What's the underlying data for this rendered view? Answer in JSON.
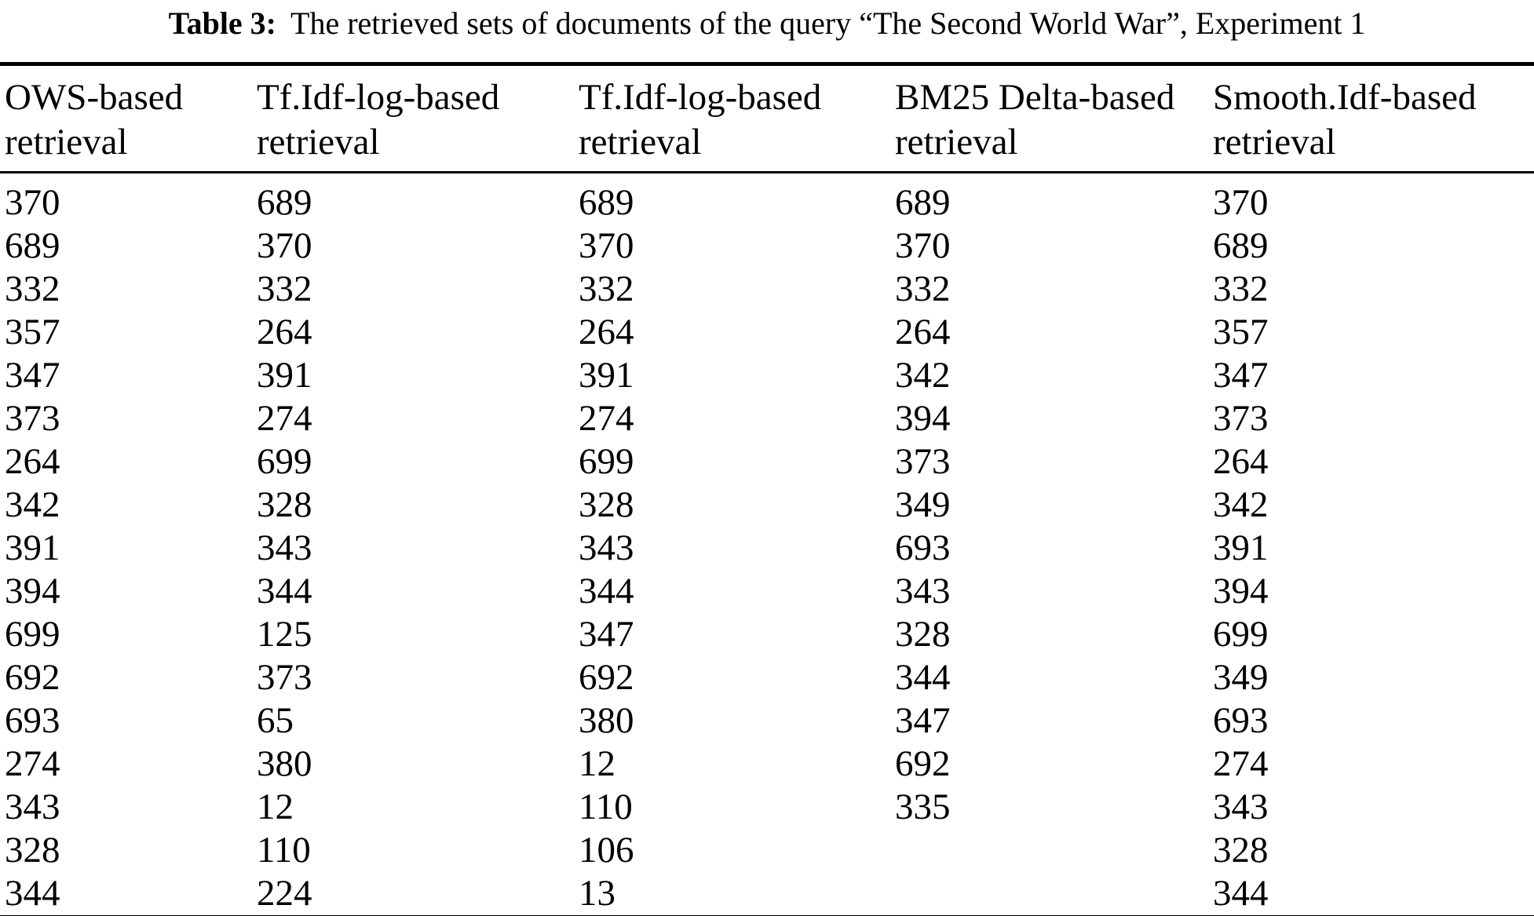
{
  "caption": {
    "label": "Table 3:",
    "text": "The retrieved sets of documents of the query “The Second World War”, Experiment 1"
  },
  "table": {
    "row_count": 17,
    "columns": [
      {
        "header_line1": "OWS-based",
        "header_line2": "retrieval",
        "values": [
          "370",
          "689",
          "332",
          "357",
          "347",
          "373",
          "264",
          "342",
          "391",
          "394",
          "699",
          "692",
          "693",
          "274",
          "343",
          "328",
          "344"
        ]
      },
      {
        "header_line1": "Tf.Idf-log-based",
        "header_line2": "retrieval",
        "values": [
          "689",
          "370",
          "332",
          "264",
          "391",
          "274",
          "699",
          "328",
          "343",
          "344",
          "125",
          "373",
          "65",
          "380",
          "12",
          "110",
          "224"
        ]
      },
      {
        "header_line1": "Tf.Idf-log-based",
        "header_line2": "retrieval",
        "values": [
          "689",
          "370",
          "332",
          "264",
          "391",
          "274",
          "699",
          "328",
          "343",
          "344",
          "347",
          "692",
          "380",
          "12",
          "110",
          "106",
          "13"
        ]
      },
      {
        "header_line1": "BM25 Delta-based",
        "header_line2": "retrieval",
        "values": [
          "689",
          "370",
          "332",
          "264",
          "342",
          "394",
          "373",
          "349",
          "693",
          "343",
          "328",
          "344",
          "347",
          "692",
          "335"
        ]
      },
      {
        "header_line1": "Smooth.Idf-based",
        "header_line2": "retrieval",
        "values": [
          "370",
          "689",
          "332",
          "357",
          "347",
          "373",
          "264",
          "342",
          "391",
          "394",
          "699",
          "349",
          "693",
          "274",
          "343",
          "328",
          "344"
        ]
      }
    ]
  }
}
